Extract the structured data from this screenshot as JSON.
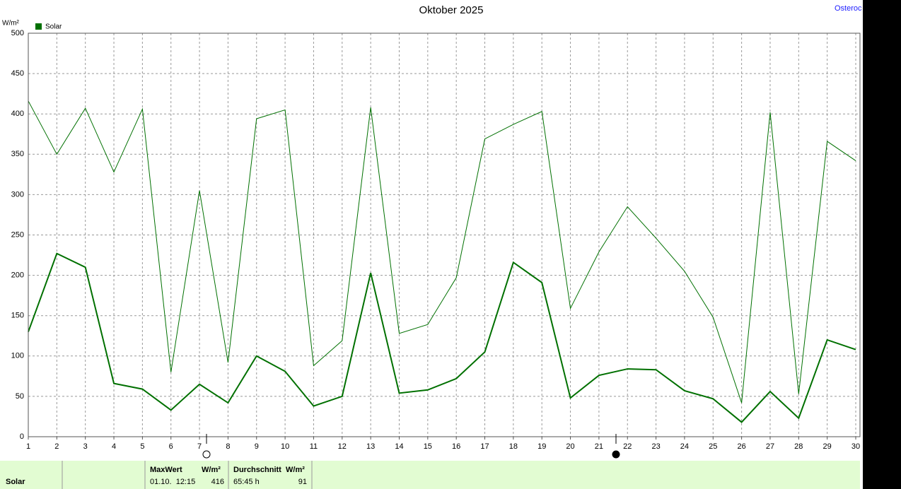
{
  "chart_data": {
    "type": "line",
    "title": "Oktober 2025",
    "site": "Osteroc",
    "y_unit": "W/m²",
    "x": [
      1,
      2,
      3,
      4,
      5,
      6,
      7,
      8,
      9,
      10,
      11,
      12,
      13,
      14,
      15,
      16,
      17,
      18,
      19,
      20,
      21,
      22,
      23,
      24,
      25,
      26,
      27,
      28,
      29,
      30
    ],
    "xlim": [
      1,
      30
    ],
    "xticks": [
      1,
      2,
      3,
      4,
      5,
      6,
      7,
      8,
      9,
      10,
      11,
      12,
      13,
      14,
      15,
      16,
      17,
      18,
      19,
      20,
      21,
      22,
      23,
      24,
      25,
      26,
      27,
      28,
      29,
      30
    ],
    "ylim": [
      0,
      500
    ],
    "yticks": [
      0,
      50,
      100,
      150,
      200,
      250,
      300,
      350,
      400,
      450,
      500
    ],
    "grid": true,
    "series": [
      {
        "name": "Solar",
        "color": "#007000",
        "values": [
          130,
          227,
          210,
          66,
          59,
          33,
          65,
          42,
          100,
          81,
          38,
          50,
          203,
          54,
          58,
          72,
          105,
          216,
          191,
          48,
          76,
          84,
          83,
          57,
          47,
          18,
          56,
          23,
          120,
          108
        ]
      },
      {
        "color": "#007000",
        "values": [
          416,
          350,
          407,
          328,
          406,
          80,
          305,
          92,
          394,
          405,
          88,
          119,
          408,
          128,
          139,
          197,
          369,
          387,
          403,
          159,
          229,
          285,
          246,
          205,
          148,
          42,
          402,
          53,
          366,
          342
        ]
      }
    ]
  },
  "footer": {
    "label": "Solar",
    "max_header": "MaxWert",
    "max_unit": "W/m²",
    "max_time": "01.10.  12:15",
    "max_value": "416",
    "avg_header": "Durchschnitt",
    "avg_unit": "W/m²",
    "avg_time": "65:45 h",
    "avg_value": "91"
  }
}
